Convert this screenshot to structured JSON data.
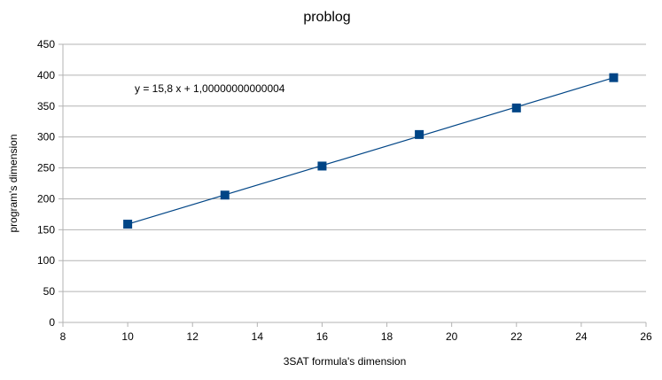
{
  "chart_data": {
    "type": "scatter",
    "title": "problog",
    "xlabel": "3SAT formula's dimension",
    "ylabel": "program's dimension",
    "xlim": [
      8,
      26
    ],
    "ylim": [
      0,
      450
    ],
    "x_ticks": [
      8,
      10,
      12,
      14,
      16,
      18,
      20,
      22,
      24,
      26
    ],
    "y_ticks": [
      0,
      50,
      100,
      150,
      200,
      250,
      300,
      350,
      400,
      450
    ],
    "grid": "horizontal",
    "legend": "none",
    "series": [
      {
        "x": [
          10,
          13,
          16,
          19,
          22,
          25
        ],
        "y": [
          159,
          206,
          253,
          304,
          347,
          396
        ],
        "marker": "square",
        "color": "#004586"
      }
    ],
    "trendline": {
      "type": "linear",
      "slope": 15.8,
      "intercept": 1.00000000000004,
      "x_range": [
        10,
        25
      ],
      "equation_label": "y = 15,8 x + 1,00000000000004",
      "color": "#004586"
    }
  }
}
